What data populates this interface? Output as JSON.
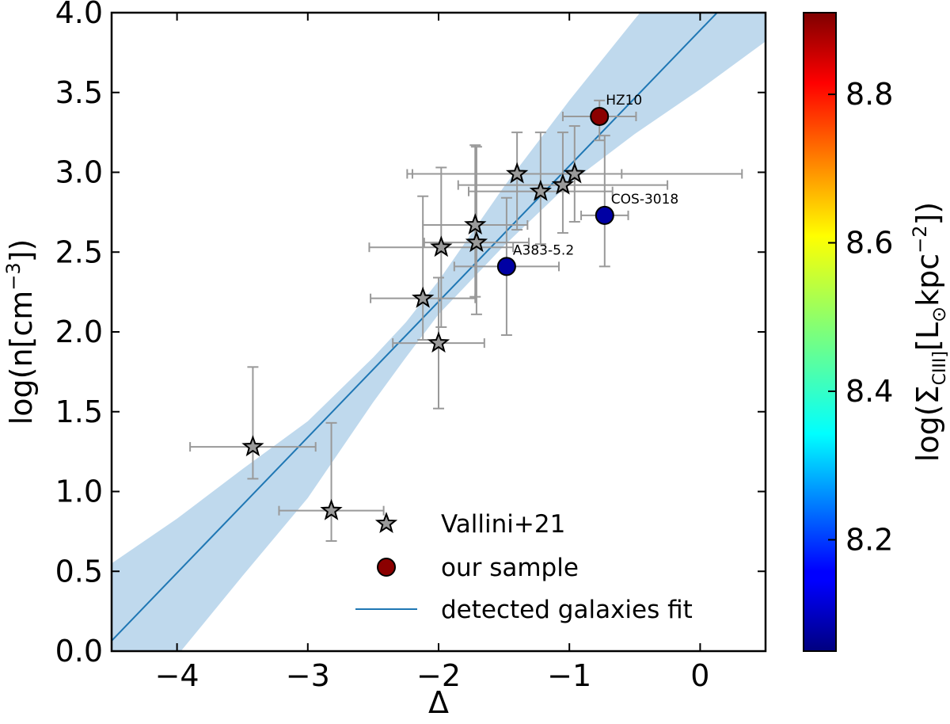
{
  "chart_data": {
    "type": "scatter",
    "title": "",
    "xlabel": "Δ",
    "ylabel": "log(n[cm⁻³])",
    "xlim": [
      -4.5,
      0.5
    ],
    "ylim": [
      0.0,
      4.0
    ],
    "xticks": [
      -4,
      -3,
      -2,
      -1,
      0
    ],
    "xtick_labels": [
      "−4",
      "−3",
      "−2",
      "−1",
      "0"
    ],
    "yticks": [
      0.0,
      0.5,
      1.0,
      1.5,
      2.0,
      2.5,
      3.0,
      3.5,
      4.0
    ],
    "ytick_labels": [
      "0.0",
      "0.5",
      "1.0",
      "1.5",
      "2.0",
      "2.5",
      "3.0",
      "3.5",
      "4.0"
    ],
    "legend_position": "lower-right",
    "colors": {
      "fit_line": "#1f77b4",
      "fit_band": "#bcd7ec",
      "star_fill": "#9a9a9a",
      "errorbar": "#999999",
      "sample_high": "#8b0000",
      "sample_low": "#0a1aa8"
    },
    "series": [
      {
        "name": "Vallini+21",
        "marker": "star",
        "points": [
          {
            "x": -3.42,
            "y": 1.28,
            "xerr": [
              0.48,
              0.48
            ],
            "yerr": [
              0.2,
              0.5
            ]
          },
          {
            "x": -2.82,
            "y": 0.88,
            "xerr": [
              0.4,
              0.4
            ],
            "yerr": [
              0.19,
              0.55
            ]
          },
          {
            "x": -2.12,
            "y": 2.21,
            "xerr": [
              0.4,
              0.4
            ],
            "yerr": [
              0.26,
              0.64
            ]
          },
          {
            "x": -2.0,
            "y": 1.93,
            "xerr": [
              0.35,
              0.35
            ],
            "yerr": [
              0.41,
              0.41
            ]
          },
          {
            "x": -1.98,
            "y": 2.53,
            "xerr": [
              0.55,
              0.55
            ],
            "yerr": [
              0.5,
              0.5
            ]
          },
          {
            "x": -1.72,
            "y": 2.67,
            "xerr": [
              0.4,
              0.4
            ],
            "yerr": [
              0.45,
              0.5
            ]
          },
          {
            "x": -1.71,
            "y": 2.56,
            "xerr": [
              0.4,
              0.4
            ],
            "yerr": [
              0.45,
              0.6
            ]
          },
          {
            "x": -1.4,
            "y": 2.99,
            "xerr": [
              0.8,
              0.8
            ],
            "yerr": [
              0.35,
              0.26
            ]
          },
          {
            "x": -1.22,
            "y": 2.88,
            "xerr": [
              0.55,
              0.55
            ],
            "yerr": [
              0.33,
              0.37
            ]
          },
          {
            "x": -1.05,
            "y": 2.92,
            "xerr": [
              0.8,
              0.8
            ],
            "yerr": [
              0.3,
              0.33
            ]
          },
          {
            "x": -0.96,
            "y": 2.99,
            "xerr": [
              1.28,
              1.28
            ],
            "yerr": [
              0.3,
              0.3
            ]
          }
        ]
      },
      {
        "name": "our sample",
        "marker": "circle",
        "colorbar_label": "log(Σ_CIII]) [L⊙ kpc⁻²]",
        "points": [
          {
            "x": -0.77,
            "y": 3.35,
            "xerr": [
              0.28,
              0.28
            ],
            "yerr": [
              0.15,
              0.1
            ],
            "c": 8.9,
            "label": "HZ10"
          },
          {
            "x": -0.73,
            "y": 2.73,
            "xerr": [
              0.18,
              0.18
            ],
            "yerr": [
              0.32,
              0.5
            ],
            "c": 8.08,
            "label": "COS-3018"
          },
          {
            "x": -1.48,
            "y": 2.41,
            "xerr": [
              0.4,
              0.4
            ],
            "yerr": [
              0.43,
              0.43
            ],
            "c": 8.08,
            "label": "A383-5.2"
          }
        ]
      },
      {
        "name": "detected galaxies fit",
        "type": "line",
        "slope": 0.85,
        "intercept": 3.89,
        "band_x": [
          -4.5,
          -4.0,
          -3.5,
          -3.0,
          -2.5,
          -2.25,
          -2.0,
          -1.5,
          -1.0,
          -0.5,
          0.0,
          0.5
        ],
        "band_lower": [
          -0.42,
          -0.03,
          0.47,
          0.96,
          1.56,
          1.84,
          2.11,
          2.54,
          2.93,
          3.24,
          3.52,
          3.82
        ],
        "band_upper": [
          0.55,
          0.83,
          1.14,
          1.44,
          1.84,
          2.06,
          2.32,
          2.91,
          3.45,
          3.96,
          4.45,
          4.98
        ]
      }
    ],
    "colorbar": {
      "label": "log(Σ",
      "label_sub": "CIII]",
      "label_tail": "[L",
      "label_sun": "⊙",
      "label_kpc": "kpc",
      "label_exp": "−2",
      "label_end": "])",
      "min": 8.05,
      "max": 8.91,
      "ticks": [
        8.2,
        8.4,
        8.6,
        8.8
      ],
      "tick_labels": [
        "8.2",
        "8.4",
        "8.6",
        "8.8"
      ],
      "colormap": "jet"
    },
    "legend": {
      "entries": [
        "Vallini+21",
        "our sample",
        "detected galaxies fit"
      ]
    },
    "ylabel_parts": {
      "base": "log(n[cm",
      "exp": "−3",
      "end": "])"
    }
  }
}
